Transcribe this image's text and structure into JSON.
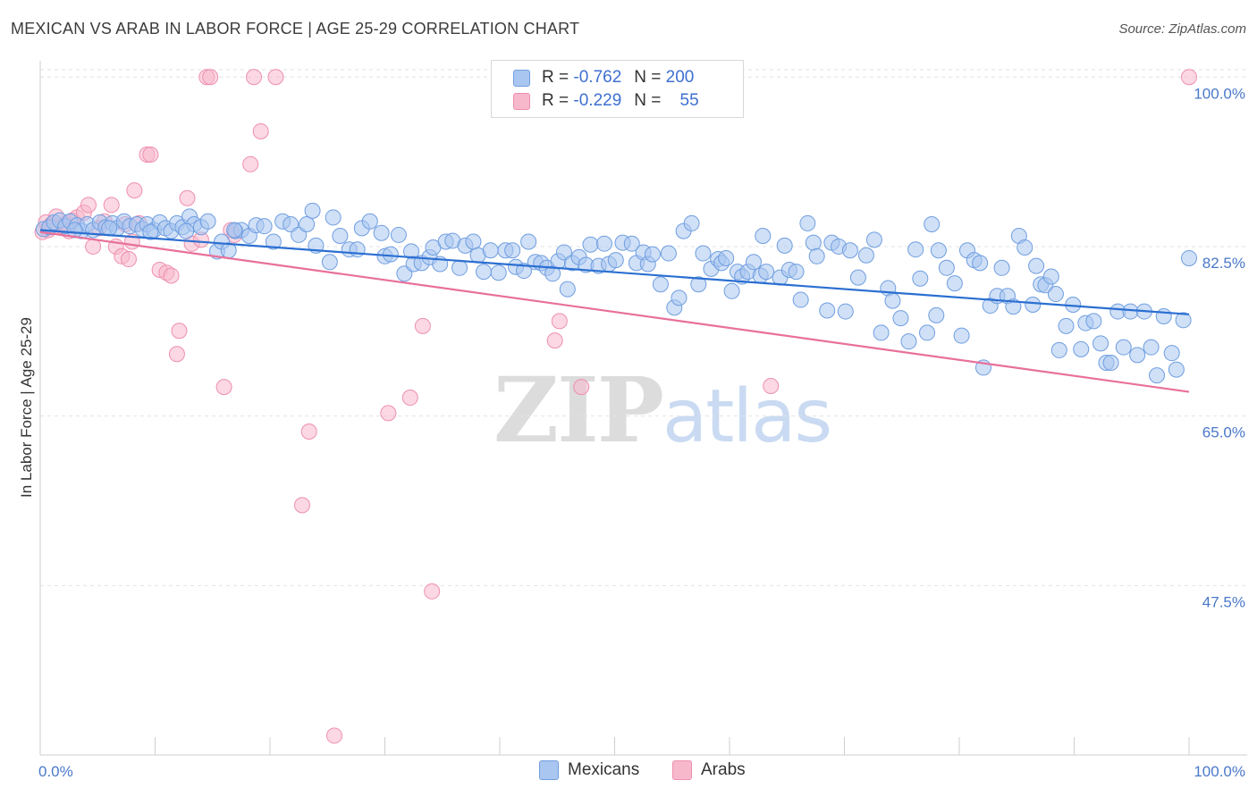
{
  "title": "MEXICAN VS ARAB IN LABOR FORCE | AGE 25-29 CORRELATION CHART",
  "source": "Source: ZipAtlas.com",
  "watermark": {
    "zip": "ZIP",
    "atlas": "atlas"
  },
  "legend": {
    "mexicans": {
      "r_label": "R =",
      "r_value": "-0.762",
      "n_label": "N =",
      "n_value": "200"
    },
    "arabs": {
      "r_label": "R =",
      "r_value": "-0.229",
      "n_label": "N =",
      "n_value": "55"
    }
  },
  "bottom_legend": {
    "mexicans": "Mexicans",
    "arabs": "Arabs"
  },
  "colors": {
    "mexicans_fill": "#a9c6f0",
    "mexicans_stroke": "#6f9ee0",
    "mexicans_line": "#2b6fd1",
    "arabs_fill": "#f7b8cc",
    "arabs_stroke": "#ee8fae",
    "arabs_line": "#e8709a"
  },
  "chart_data": {
    "type": "scatter",
    "title": "MEXICAN VS ARAB IN LABOR FORCE | AGE 25-29 CORRELATION CHART",
    "xlabel": "",
    "ylabel": "In Labor Force | Age 25-29",
    "xlim": [
      0,
      100
    ],
    "ylim": [
      30,
      101.5
    ],
    "x_tick_labels": [
      "0.0%",
      "100.0%"
    ],
    "y_ticks": [
      47.5,
      65.0,
      82.5,
      100.0
    ],
    "y_tick_labels": [
      "47.5%",
      "65.0%",
      "82.5%",
      "100.0%"
    ],
    "grid": "horizontal dashed",
    "legend_position": "top-center",
    "series": [
      {
        "name": "Mexicans",
        "R": -0.762,
        "N": 200,
        "trend": {
          "x": [
            0,
            100
          ],
          "y": [
            84.2,
            75.5
          ]
        },
        "points": [
          [
            0.3,
            84.3
          ],
          [
            0.8,
            84.5
          ],
          [
            1.2,
            85
          ],
          [
            1.7,
            85.2
          ],
          [
            2.2,
            84.6
          ],
          [
            2.6,
            85.1
          ],
          [
            3.2,
            84.7
          ],
          [
            3.6,
            84.1
          ],
          [
            4.1,
            84.8
          ],
          [
            4.6,
            84.2
          ],
          [
            5.2,
            85
          ],
          [
            5.7,
            84.5
          ],
          [
            6.3,
            84.9
          ],
          [
            6.7,
            84.4
          ],
          [
            7.3,
            85.1
          ],
          [
            7.8,
            84.6
          ],
          [
            8.4,
            84.8
          ],
          [
            8.9,
            84.3
          ],
          [
            9.3,
            84.8
          ],
          [
            9.9,
            84.2
          ],
          [
            10.4,
            85
          ],
          [
            10.9,
            84.4
          ],
          [
            11.4,
            84.1
          ],
          [
            11.9,
            84.9
          ],
          [
            12.4,
            84.5
          ],
          [
            13,
            85.6
          ],
          [
            13.4,
            84.8
          ],
          [
            14,
            84.5
          ],
          [
            14.6,
            85.1
          ],
          [
            15.4,
            82
          ],
          [
            15.8,
            83
          ],
          [
            16.4,
            82.1
          ],
          [
            17,
            84.1
          ],
          [
            17.5,
            84.2
          ],
          [
            18.2,
            83.6
          ],
          [
            18.8,
            84.7
          ],
          [
            19.5,
            84.6
          ],
          [
            20.3,
            83
          ],
          [
            21.1,
            85.1
          ],
          [
            21.8,
            84.8
          ],
          [
            22.5,
            83.7
          ],
          [
            23.2,
            84.8
          ],
          [
            23.7,
            86.2
          ],
          [
            24,
            82.6
          ],
          [
            25.2,
            80.9
          ],
          [
            25.5,
            85.5
          ],
          [
            26.1,
            83.6
          ],
          [
            26.9,
            82.2
          ],
          [
            27.6,
            82.2
          ],
          [
            28,
            84.4
          ],
          [
            28.7,
            85.1
          ],
          [
            29.7,
            83.9
          ],
          [
            30,
            81.5
          ],
          [
            30.5,
            81.7
          ],
          [
            31.2,
            83.7
          ],
          [
            31.7,
            79.7
          ],
          [
            32.3,
            82
          ],
          [
            32.5,
            80.7
          ],
          [
            33.2,
            80.8
          ],
          [
            33.9,
            81.4
          ],
          [
            34.2,
            82.4
          ],
          [
            34.8,
            80.7
          ],
          [
            35.3,
            83
          ],
          [
            35.9,
            83.1
          ],
          [
            36.5,
            80.3
          ],
          [
            37,
            82.6
          ],
          [
            37.7,
            83
          ],
          [
            38.1,
            81.6
          ],
          [
            38.6,
            79.9
          ],
          [
            39.2,
            82.1
          ],
          [
            39.9,
            79.8
          ],
          [
            40.5,
            82.1
          ],
          [
            41.1,
            82.1
          ],
          [
            41.4,
            80.4
          ],
          [
            42.1,
            80
          ],
          [
            42.5,
            83
          ],
          [
            43.1,
            80.9
          ],
          [
            43.6,
            80.8
          ],
          [
            44.1,
            80.3
          ],
          [
            44.6,
            79.7
          ],
          [
            45.1,
            81
          ],
          [
            45.6,
            81.9
          ],
          [
            45.9,
            78.1
          ],
          [
            46.3,
            80.8
          ],
          [
            46.9,
            81.4
          ],
          [
            47.5,
            80.6
          ],
          [
            47.9,
            82.7
          ],
          [
            48.6,
            80.5
          ],
          [
            49.1,
            82.8
          ],
          [
            49.5,
            80.7
          ],
          [
            50.1,
            81.1
          ],
          [
            50.7,
            82.9
          ],
          [
            51.5,
            82.8
          ],
          [
            51.9,
            80.8
          ],
          [
            52.5,
            81.9
          ],
          [
            52.9,
            80.7
          ],
          [
            53.3,
            81.7
          ],
          [
            54,
            78.6
          ],
          [
            54.7,
            81.8
          ],
          [
            55.2,
            76.2
          ],
          [
            55.6,
            77.2
          ],
          [
            56,
            84.1
          ],
          [
            56.7,
            84.9
          ],
          [
            57.3,
            78.6
          ],
          [
            57.7,
            81.8
          ],
          [
            58.4,
            80.2
          ],
          [
            59,
            81.2
          ],
          [
            59.3,
            80.8
          ],
          [
            59.7,
            81.3
          ],
          [
            60.2,
            77.9
          ],
          [
            60.7,
            79.9
          ],
          [
            61.1,
            79.4
          ],
          [
            61.6,
            79.9
          ],
          [
            62.1,
            80.9
          ],
          [
            62.7,
            79.5
          ],
          [
            62.9,
            83.6
          ],
          [
            63.2,
            79.9
          ],
          [
            64.4,
            79.3
          ],
          [
            64.8,
            82.6
          ],
          [
            65.2,
            80.1
          ],
          [
            65.8,
            79.9
          ],
          [
            66.2,
            77
          ],
          [
            66.8,
            84.9
          ],
          [
            67.3,
            82.9
          ],
          [
            67.6,
            81.5
          ],
          [
            68.5,
            75.9
          ],
          [
            68.9,
            82.9
          ],
          [
            69.5,
            82.5
          ],
          [
            70.1,
            75.8
          ],
          [
            70.5,
            82.1
          ],
          [
            71.2,
            79.3
          ],
          [
            71.9,
            81.6
          ],
          [
            72.6,
            83.2
          ],
          [
            73.2,
            73.6
          ],
          [
            73.8,
            78.2
          ],
          [
            74.2,
            76.9
          ],
          [
            74.9,
            75.1
          ],
          [
            75.6,
            72.7
          ],
          [
            76.2,
            82.2
          ],
          [
            76.6,
            79.2
          ],
          [
            77.2,
            73.6
          ],
          [
            77.6,
            84.8
          ],
          [
            78,
            75.4
          ],
          [
            78.2,
            82.1
          ],
          [
            78.9,
            80.3
          ],
          [
            79.6,
            78.7
          ],
          [
            80.2,
            73.3
          ],
          [
            80.7,
            82.1
          ],
          [
            81.3,
            81.1
          ],
          [
            81.8,
            80.8
          ],
          [
            82.1,
            70
          ],
          [
            82.7,
            76.4
          ],
          [
            83.3,
            77.4
          ],
          [
            83.7,
            80.3
          ],
          [
            84.2,
            77.4
          ],
          [
            84.7,
            76.3
          ],
          [
            85.2,
            83.6
          ],
          [
            85.7,
            82.4
          ],
          [
            86.4,
            76.5
          ],
          [
            86.7,
            80.5
          ],
          [
            87.1,
            78.6
          ],
          [
            87.5,
            78.5
          ],
          [
            88,
            79.4
          ],
          [
            88.4,
            77.6
          ],
          [
            88.7,
            71.8
          ],
          [
            89.3,
            74.3
          ],
          [
            89.9,
            76.5
          ],
          [
            90.6,
            71.9
          ],
          [
            91,
            74.6
          ],
          [
            91.7,
            74.8
          ],
          [
            92.3,
            72.5
          ],
          [
            92.8,
            70.5
          ],
          [
            93.2,
            70.5
          ],
          [
            93.8,
            75.8
          ],
          [
            94.3,
            72.1
          ],
          [
            94.9,
            75.8
          ],
          [
            95.5,
            71.3
          ],
          [
            96.1,
            75.8
          ],
          [
            96.7,
            72.1
          ],
          [
            97.2,
            69.2
          ],
          [
            97.8,
            75.3
          ],
          [
            98.5,
            71.5
          ],
          [
            98.9,
            69.8
          ],
          [
            99.5,
            74.9
          ],
          [
            100,
            81.3
          ],
          [
            3,
            84.2
          ],
          [
            6,
            84.4
          ],
          [
            9.6,
            84
          ],
          [
            12.7,
            84.1
          ],
          [
            16.9,
            84.2
          ]
        ]
      },
      {
        "name": "Arabs",
        "R": -0.229,
        "N": 55,
        "trend": {
          "x": [
            0,
            100
          ],
          "y": [
            84.0,
            67.5
          ]
        },
        "points": [
          [
            0.2,
            84
          ],
          [
            0.5,
            85
          ],
          [
            0.7,
            84.2
          ],
          [
            1,
            84.8
          ],
          [
            1.4,
            85.6
          ],
          [
            1.9,
            84.6
          ],
          [
            2.3,
            84.9
          ],
          [
            2.8,
            85.2
          ],
          [
            3.2,
            85.5
          ],
          [
            3.8,
            86
          ],
          [
            4.2,
            86.8
          ],
          [
            4.6,
            82.5
          ],
          [
            5.1,
            84.4
          ],
          [
            5.6,
            85.1
          ],
          [
            6.2,
            86.8
          ],
          [
            6.6,
            82.5
          ],
          [
            7.1,
            81.5
          ],
          [
            7.4,
            84.8
          ],
          [
            7.7,
            81.2
          ],
          [
            8,
            83
          ],
          [
            8.2,
            88.3
          ],
          [
            8.6,
            84.9
          ],
          [
            9.3,
            92
          ],
          [
            9.6,
            92
          ],
          [
            10.4,
            80.1
          ],
          [
            11,
            79.8
          ],
          [
            11.4,
            79.5
          ],
          [
            11.9,
            71.4
          ],
          [
            12.1,
            73.8
          ],
          [
            12.8,
            87.5
          ],
          [
            13.2,
            82.8
          ],
          [
            14,
            83.2
          ],
          [
            14.5,
            100
          ],
          [
            14.8,
            100
          ],
          [
            16,
            68
          ],
          [
            16.6,
            84.2
          ],
          [
            16.9,
            83.7
          ],
          [
            18.3,
            91
          ],
          [
            18.6,
            100
          ],
          [
            19.2,
            94.4
          ],
          [
            20.5,
            100
          ],
          [
            23.4,
            63.4
          ],
          [
            22.8,
            55.8
          ],
          [
            25.6,
            32
          ],
          [
            30.3,
            65.3
          ],
          [
            32.2,
            66.9
          ],
          [
            33.3,
            74.3
          ],
          [
            34.1,
            46.9
          ],
          [
            44.8,
            72.8
          ],
          [
            45.2,
            74.8
          ],
          [
            47.1,
            68
          ],
          [
            63.6,
            68.1
          ],
          [
            100,
            100
          ],
          [
            1.1,
            84.5
          ],
          [
            2.5,
            84.1
          ]
        ]
      }
    ]
  }
}
